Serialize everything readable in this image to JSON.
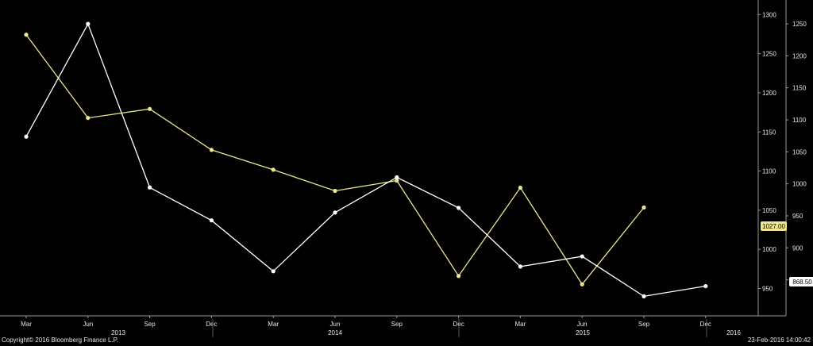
{
  "chart_data": {
    "type": "line",
    "categories": [
      "Mar",
      "Jun",
      "Sep",
      "Dec",
      "Mar",
      "Jun",
      "Sep",
      "Dec",
      "Mar",
      "Jun",
      "Sep",
      "Dec"
    ],
    "years": [
      {
        "label": "2013"
      },
      {
        "label": "2014"
      },
      {
        "label": "2015"
      },
      {
        "label": "2016"
      }
    ],
    "left_axis": {
      "ticks": [
        950,
        1000,
        1050,
        1100,
        1150,
        1200,
        1250,
        1300
      ],
      "range": [
        935.3,
        1306.4
      ]
    },
    "right_axis": {
      "ticks": [
        850,
        900,
        950,
        1000,
        1050,
        1100,
        1150,
        1200,
        1250
      ],
      "range": [
        818.5,
        1272.4
      ]
    },
    "series": [
      {
        "axis": "right",
        "color": "#f0e68c",
        "values": [
          1233,
          1103,
          1117,
          1053,
          1022,
          989,
          1005,
          856,
          994,
          843,
          963,
          null
        ]
      },
      {
        "axis": "left",
        "color": "#ffffff",
        "values": [
          1144,
          1288,
          1079,
          1037,
          972,
          1047,
          1092,
          1053,
          978,
          991,
          940,
          953
        ]
      }
    ],
    "last_value_tags": [
      "1027.00",
      "868.50"
    ],
    "copyright": "Copyright© 2016 Bloomberg Finance L.P.",
    "timestamp": "23-Feb-2016 14:00:42"
  }
}
